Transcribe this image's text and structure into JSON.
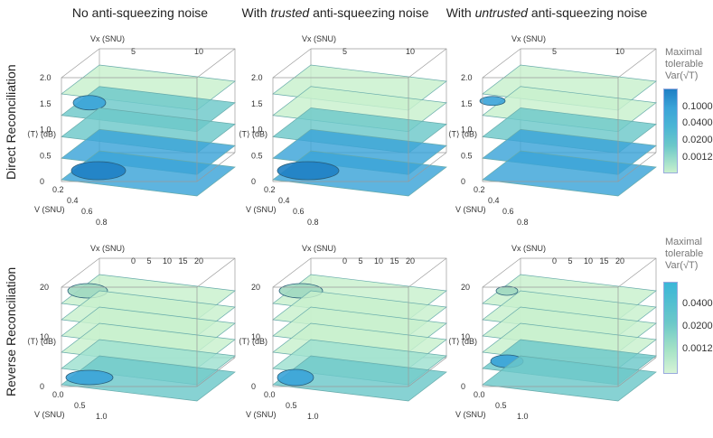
{
  "columns": [
    {
      "prefix": "No anti-squeezing noise",
      "emph": "",
      "suffix": ""
    },
    {
      "prefix": "With ",
      "emph": "trusted",
      "suffix": " anti-squeezing noise"
    },
    {
      "prefix": "With ",
      "emph": "untrusted",
      "suffix": " anti-squeezing noise"
    }
  ],
  "rows": [
    "Direct Reconciliation",
    "Reverse Reconciliation"
  ],
  "legend_top": {
    "title_lines": [
      "Maximal",
      "tolerable",
      "Var(√T)"
    ],
    "labels": [
      "0.1000",
      "0.0400",
      "0.0200",
      "0.0012"
    ]
  },
  "legend_bottom": {
    "title_lines": [
      "Maximal",
      "tolerable",
      "Var(√T)"
    ],
    "labels": [
      "0.0400",
      "0.0200",
      "0.0012"
    ]
  },
  "chart_data": [
    {
      "type": "surface3d",
      "row": "Direct Reconciliation",
      "column": "No anti-squeezing noise",
      "axes": {
        "vx_label": "Vx (SNU)",
        "v_label": "V (SNU)",
        "t_label": "⟨T⟩ (dB)",
        "vx_ticks": [
          "5",
          "10"
        ],
        "v_ticks": [
          "0.2",
          "0.4",
          "0.6",
          "0.8"
        ],
        "t_ticks": [
          "0",
          "0.5",
          "1.0",
          "1.5",
          "2.0"
        ]
      }
    },
    {
      "type": "surface3d",
      "row": "Direct Reconciliation",
      "column": "With trusted anti-squeezing noise",
      "axes": {
        "vx_label": "Vx (SNU)",
        "v_label": "V (SNU)",
        "t_label": "⟨T⟩ (dB)",
        "vx_ticks": [
          "5",
          "10"
        ],
        "v_ticks": [
          "0.2",
          "0.4",
          "0.6",
          "0.8"
        ],
        "t_ticks": [
          "0",
          "0.5",
          "1.0",
          "1.5",
          "2.0"
        ]
      }
    },
    {
      "type": "surface3d",
      "row": "Direct Reconciliation",
      "column": "With untrusted anti-squeezing noise",
      "axes": {
        "vx_label": "Vx (SNU)",
        "v_label": "V (SNU)",
        "t_label": "⟨T⟩ (dB)",
        "vx_ticks": [
          "5",
          "10"
        ],
        "v_ticks": [
          "0.2",
          "0.4",
          "0.6",
          "0.8"
        ],
        "t_ticks": [
          "0",
          "0.5",
          "1.0",
          "1.5",
          "2.0"
        ]
      }
    },
    {
      "type": "surface3d",
      "row": "Reverse Reconciliation",
      "column": "No anti-squeezing noise",
      "axes": {
        "vx_label": "Vx (SNU)",
        "v_label": "V (SNU)",
        "t_label": "⟨T⟩ (dB)",
        "vx_ticks": [
          "0",
          "5",
          "10",
          "15",
          "20"
        ],
        "v_ticks": [
          "0.0",
          "0.5",
          "1.0"
        ],
        "t_ticks": [
          "0",
          "10",
          "20"
        ]
      }
    },
    {
      "type": "surface3d",
      "row": "Reverse Reconciliation",
      "column": "With trusted anti-squeezing noise",
      "axes": {
        "vx_label": "Vx (SNU)",
        "v_label": "V (SNU)",
        "t_label": "⟨T⟩ (dB)",
        "vx_ticks": [
          "0",
          "5",
          "10",
          "15",
          "20"
        ],
        "v_ticks": [
          "0.0",
          "0.5",
          "1.0"
        ],
        "t_ticks": [
          "0",
          "10",
          "20"
        ]
      }
    },
    {
      "type": "surface3d",
      "row": "Reverse Reconciliation",
      "column": "With untrusted anti-squeezing noise",
      "axes": {
        "vx_label": "Vx (SNU)",
        "v_label": "V (SNU)",
        "t_label": "⟨T⟩ (dB)",
        "vx_ticks": [
          "0",
          "5",
          "10",
          "15",
          "20"
        ],
        "v_ticks": [
          "0.0",
          "0.5",
          "1.0"
        ],
        "t_ticks": [
          "0",
          "10",
          "20"
        ]
      }
    }
  ],
  "colors": {
    "level_1": "#1e7fc4",
    "level_2": "#3aa3d8",
    "level_3": "#6cc8c9",
    "level_4": "#c8f0cd",
    "frame": "#9a9a9a"
  }
}
